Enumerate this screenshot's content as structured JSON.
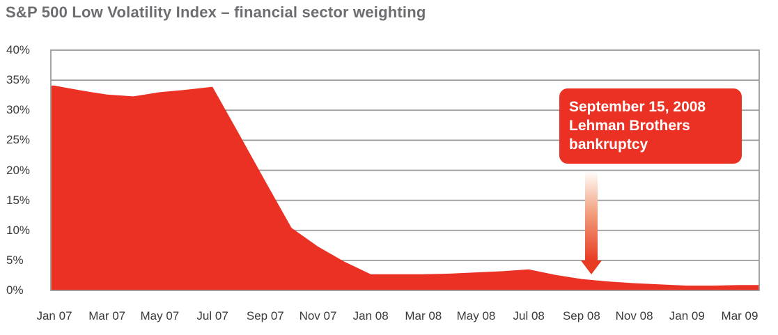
{
  "page": {
    "title": "S&P 500 Low Volatility Index – financial sector weighting"
  },
  "colors": {
    "series_red": "#EB3024",
    "annotation_bg": "#EB3024",
    "annotation_text": "#FFFFFF",
    "grid": "#9B9B9B",
    "axis_text": "#3A3A3A",
    "title_text": "#6C6D70",
    "arrow_gradient_top": "#FFFDFB",
    "arrow_gradient_mid": "#F2A280",
    "arrow_gradient_bottom": "#E73B22"
  },
  "annotation": {
    "line1": "September 15, 2008",
    "line2": "Lehman Brothers",
    "line3": "bankruptcy",
    "arrow_direction": "down",
    "arrow_points_to": "Sep 08"
  },
  "chart_data": {
    "type": "area",
    "title": "S&P 500 Low Volatility Index – financial sector weighting",
    "series_name": "Financial sector weighting",
    "x": [
      "Jan 07",
      "Feb 07",
      "Mar 07",
      "Apr 07",
      "May 07",
      "Jun 07",
      "Jul 07",
      "Aug 07",
      "Sep 07",
      "Oct 07",
      "Nov 07",
      "Dec 07",
      "Jan 08",
      "Feb 08",
      "Mar 08",
      "Apr 08",
      "May 08",
      "Jun 08",
      "Jul 08",
      "Aug 08",
      "Sep 08",
      "Oct 08",
      "Nov 08",
      "Dec 08",
      "Jan 09",
      "Feb 09",
      "Mar 09"
    ],
    "values": [
      34.1,
      33.3,
      32.6,
      32.3,
      33.0,
      33.4,
      33.9,
      26.1,
      18.2,
      10.4,
      7.3,
      4.8,
      2.7,
      2.7,
      2.7,
      2.8,
      3.0,
      3.2,
      3.5,
      2.6,
      1.9,
      1.5,
      1.2,
      1.0,
      0.8,
      0.8,
      0.9
    ],
    "x_tick_labels": [
      "Jan 07",
      "Mar 07",
      "May 07",
      "Jul 07",
      "Sep 07",
      "Nov 07",
      "Jan 08",
      "Mar 08",
      "May 08",
      "Jul 08",
      "Sep 08",
      "Nov 08",
      "Jan 09",
      "Mar 09"
    ],
    "y_tick_labels": [
      "40%",
      "35%",
      "30%",
      "25%",
      "20%",
      "15%",
      "10%",
      "5%",
      "0%"
    ],
    "ylim": [
      0,
      40
    ],
    "xlabel": "",
    "ylabel": "",
    "grid": "horizontal",
    "legend": "none"
  }
}
